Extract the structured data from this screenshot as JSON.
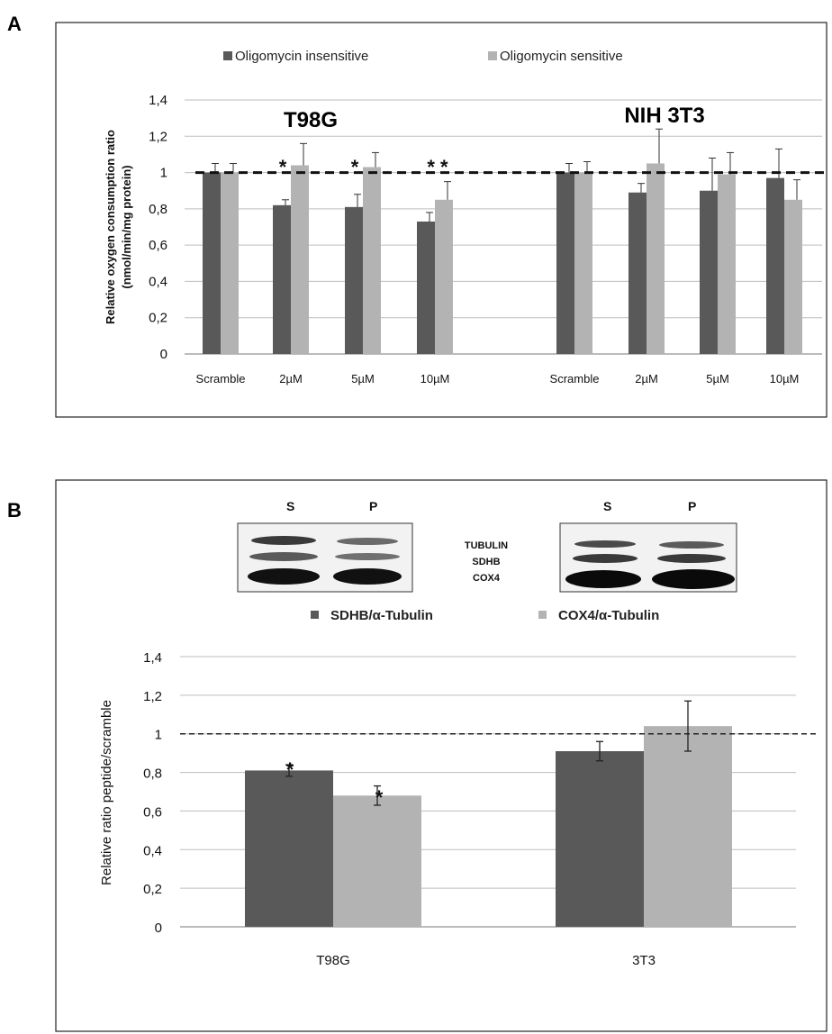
{
  "panels": {
    "a": {
      "letter": "A"
    },
    "b": {
      "letter": "B"
    }
  },
  "chart_data": [
    {
      "type": "bar",
      "panel": "A",
      "ylabel_lines": [
        "Relative oxygen consumption ratio",
        "(nmol/min/mg protein)"
      ],
      "ylim": [
        0,
        1.4
      ],
      "yticks": [
        "0",
        "0,2",
        "0,4",
        "0,6",
        "0,8",
        "1",
        "1,2",
        "1,4"
      ],
      "grid": true,
      "legend_position": "top",
      "reference_line": 1,
      "groups": [
        {
          "label": "T98G",
          "categories": [
            "Scramble",
            "2µM",
            "5µM",
            "10µM"
          ]
        },
        {
          "label": "NIH 3T3",
          "categories": [
            "Scramble",
            "2µM",
            "5µM",
            "10µM"
          ]
        }
      ],
      "series": [
        {
          "name": "Oligomycin insensitive",
          "color": "#595959",
          "values": [
            1.0,
            0.82,
            0.81,
            0.73,
            1.0,
            0.89,
            0.9,
            0.97
          ],
          "errors": [
            0.05,
            0.03,
            0.07,
            0.05,
            0.05,
            0.05,
            0.18,
            0.16
          ]
        },
        {
          "name": "Oligomycin sensitive",
          "color": "#b3b3b3",
          "values": [
            1.0,
            1.04,
            1.03,
            0.85,
            1.0,
            1.05,
            0.99,
            0.85
          ],
          "errors": [
            0.05,
            0.12,
            0.08,
            0.1,
            0.06,
            0.19,
            0.12,
            0.11
          ]
        }
      ],
      "annotations": [
        "*",
        "*",
        "* *"
      ]
    },
    {
      "type": "bar",
      "panel": "B",
      "ylabel": "Relative ratio peptide/scramble",
      "ylim": [
        0,
        1.4
      ],
      "yticks": [
        "0",
        "0,2",
        "0,4",
        "0,6",
        "0,8",
        "1",
        "1,2",
        "1,4"
      ],
      "grid": true,
      "legend_position": "top",
      "reference_line": 1,
      "categories": [
        "T98G",
        "3T3"
      ],
      "series": [
        {
          "name": "SDHB/α-Tubulin",
          "color": "#595959",
          "values": [
            0.81,
            0.91
          ],
          "errors": [
            0.03,
            0.05
          ]
        },
        {
          "name": "COX4/α-Tubulin",
          "color": "#b3b3b3",
          "values": [
            0.68,
            1.04
          ],
          "errors": [
            0.05,
            0.13
          ]
        }
      ],
      "annotations": [
        "*",
        "*"
      ]
    }
  ],
  "blots": {
    "lane_labels": [
      "S",
      "P",
      "S",
      "P"
    ],
    "band_labels": [
      "TUBULIN",
      "SDHB",
      "COX4"
    ]
  }
}
